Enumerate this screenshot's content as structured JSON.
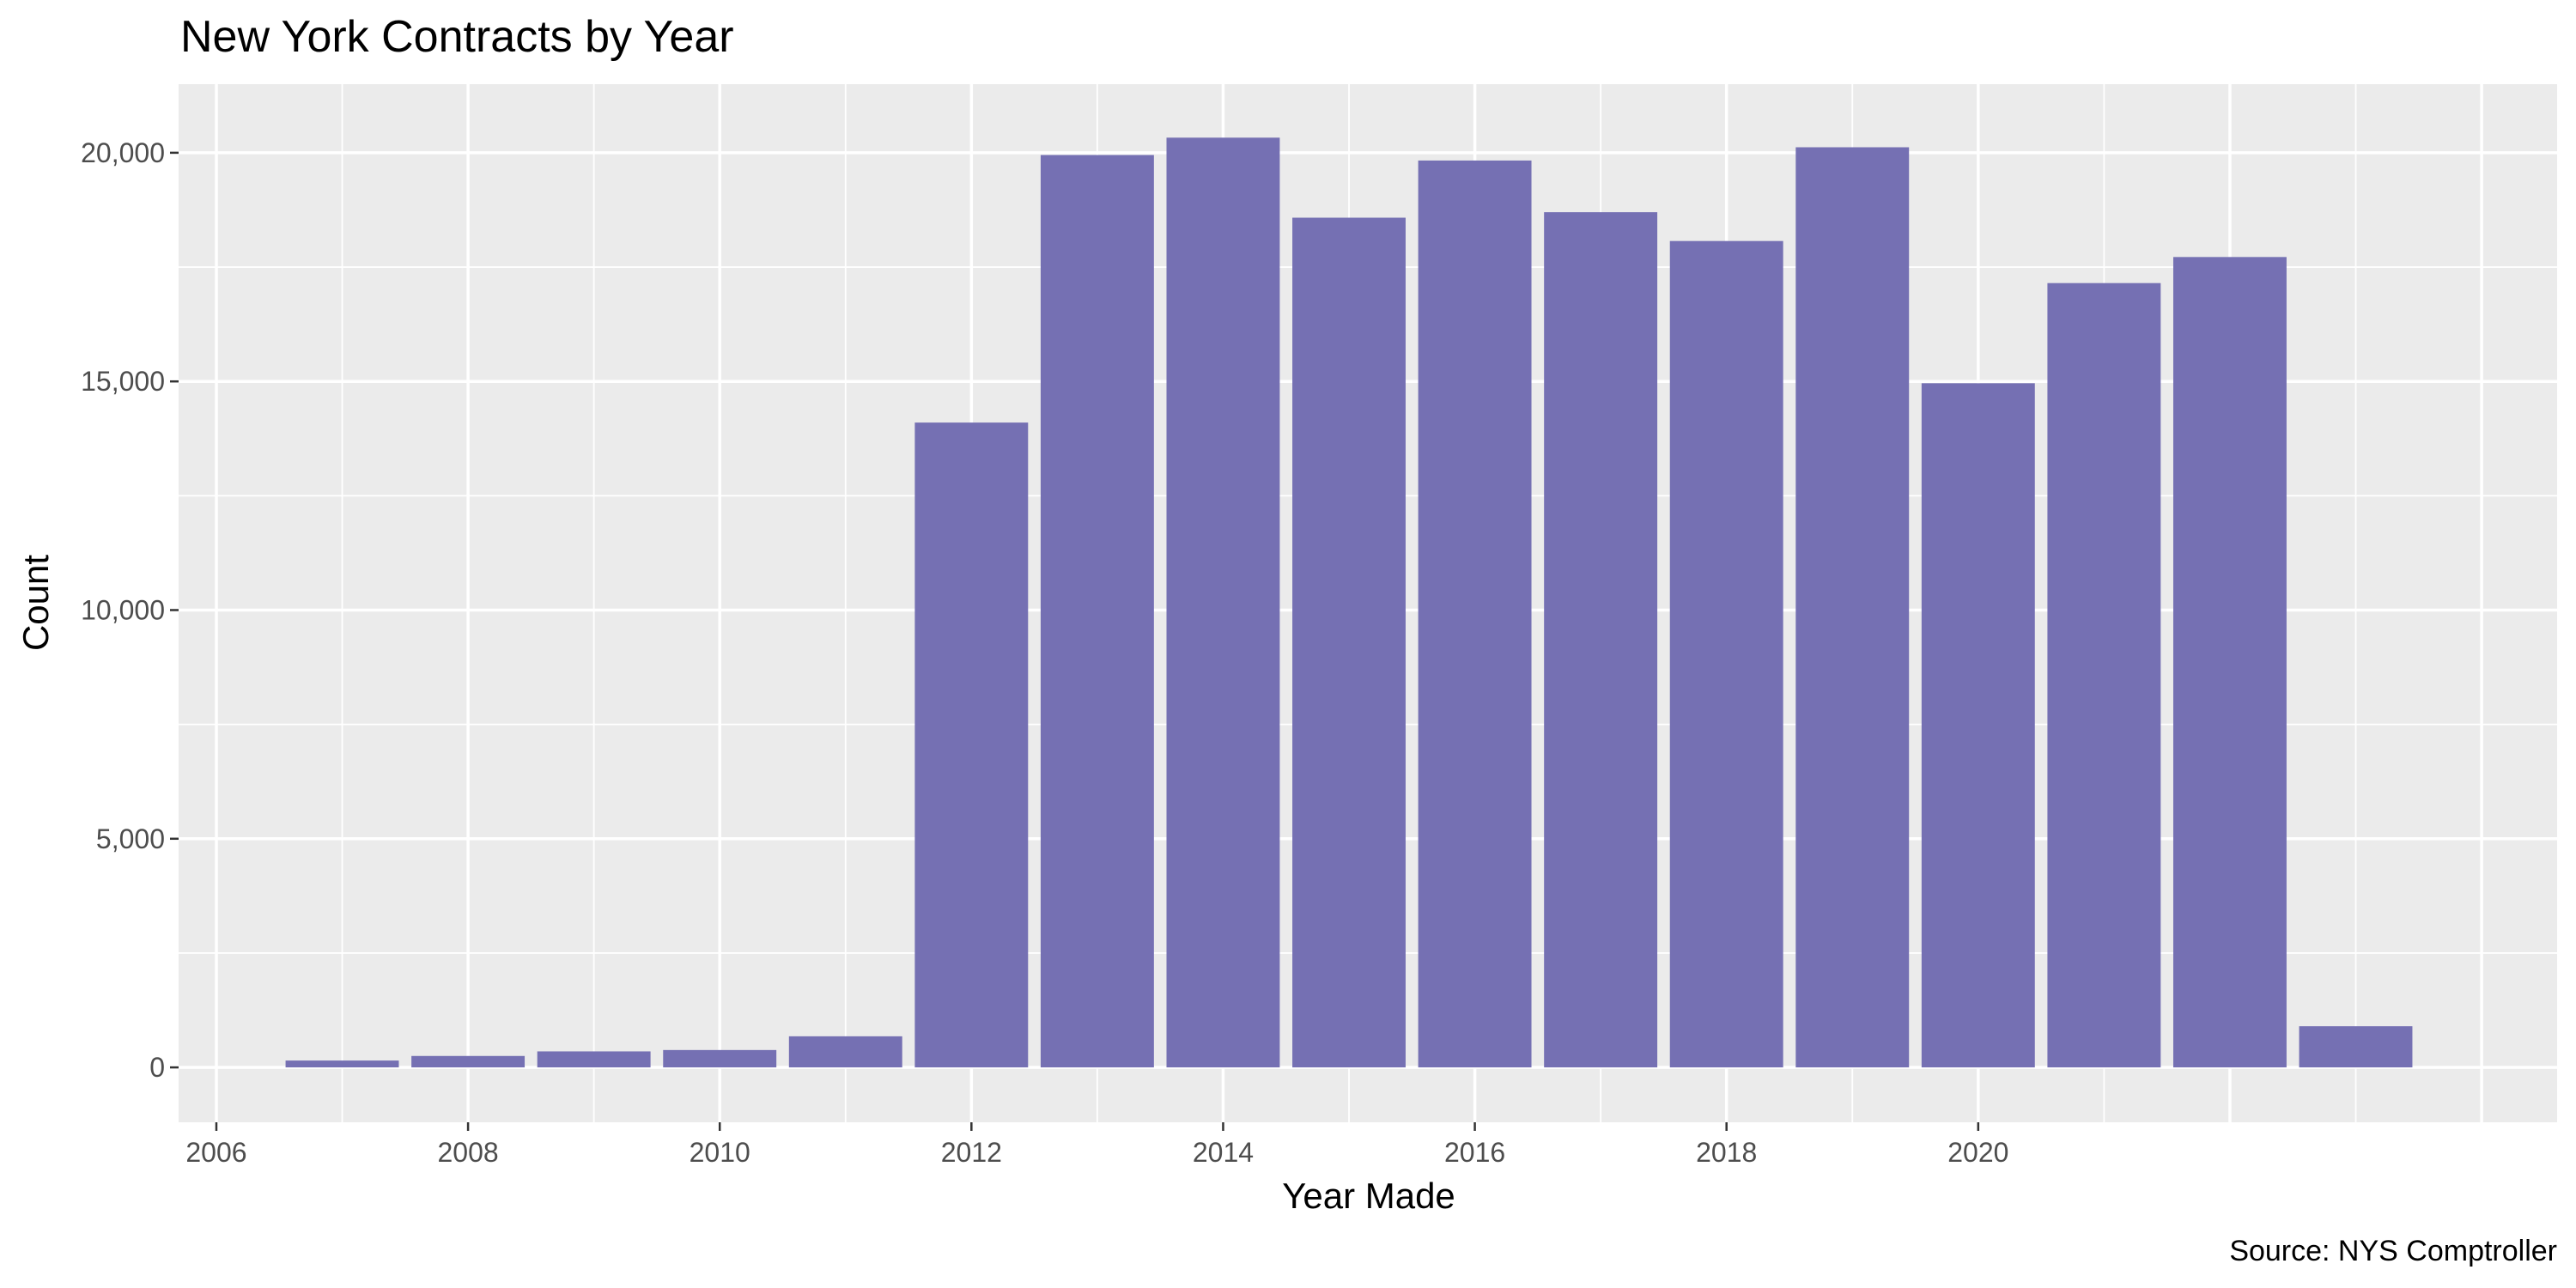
{
  "chart_data": {
    "type": "bar",
    "title": "New York Contracts by Year",
    "xlabel": "Year Made",
    "ylabel": "Count",
    "caption": "Source: NYS Comptroller",
    "x": [
      2007,
      2008,
      2009,
      2010,
      2011,
      2012,
      2013,
      2014,
      2015,
      2016,
      2017,
      2018,
      2019,
      2020,
      2021,
      2022,
      2023
    ],
    "values": [
      150,
      250,
      350,
      380,
      680,
      14100,
      19950,
      20330,
      18580,
      19830,
      18700,
      18070,
      20120,
      14960,
      17150,
      17720,
      900
    ],
    "xlim": [
      2005.7,
      2024.6
    ],
    "ylim": [
      -1200,
      21500
    ],
    "x_ticks": [
      2006,
      2008,
      2010,
      2012,
      2014,
      2016,
      2018,
      2020
    ],
    "x_tick_labels": [
      "2006",
      "2008",
      "2010",
      "2012",
      "2014",
      "2016",
      "2018",
      "2020"
    ],
    "y_ticks": [
      0,
      5000,
      10000,
      15000,
      20000
    ],
    "y_tick_labels": [
      "0",
      "5,000",
      "10,000",
      "15,000",
      "20,000"
    ],
    "bar_color": "#7570b3",
    "panel_color": "#ebebeb",
    "grid": true,
    "legend": "none"
  }
}
